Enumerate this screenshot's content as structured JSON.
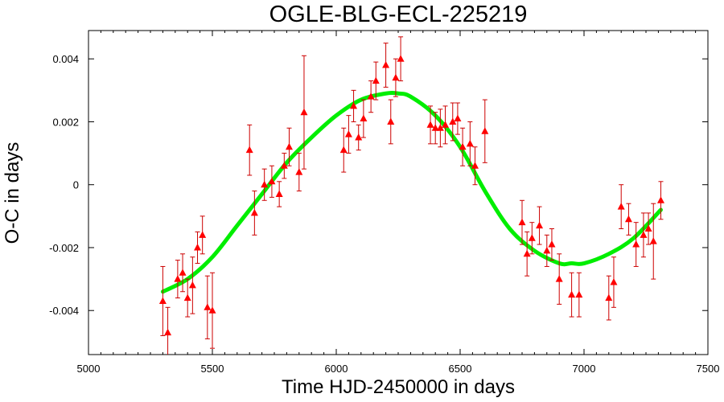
{
  "chart_data": {
    "type": "scatter",
    "title": "OGLE-BLG-ECL-225219",
    "xlabel": "Time HJD-2450000 in days",
    "ylabel": "O-C in days",
    "xlim": [
      5000,
      7500
    ],
    "ylim": [
      -0.0054,
      0.0049
    ],
    "xticks": [
      5000,
      5500,
      6000,
      6500,
      7000,
      7500
    ],
    "xtick_labels": [
      "5000",
      "5500",
      "6000",
      "6500",
      "7000",
      "7500"
    ],
    "yticks": [
      -0.004,
      -0.002,
      0,
      0.002,
      0.004
    ],
    "ytick_labels": [
      "-0.004",
      "-0.002",
      "0",
      "0.002",
      "0.004"
    ],
    "grid": false,
    "colors": {
      "points": "#ff0000",
      "errorbars": "#cc0000",
      "fit": "#00ee00"
    },
    "series": [
      {
        "kind": "points-with-errors",
        "points": [
          {
            "x": 5300,
            "y": -0.0037,
            "err": 0.0011
          },
          {
            "x": 5320,
            "y": -0.0047,
            "err": 0.0008
          },
          {
            "x": 5360,
            "y": -0.003,
            "err": 0.0006
          },
          {
            "x": 5380,
            "y": -0.0028,
            "err": 0.0006
          },
          {
            "x": 5400,
            "y": -0.0036,
            "err": 0.0006
          },
          {
            "x": 5420,
            "y": -0.0032,
            "err": 0.0009
          },
          {
            "x": 5440,
            "y": -0.002,
            "err": 0.0005
          },
          {
            "x": 5460,
            "y": -0.0016,
            "err": 0.0006
          },
          {
            "x": 5480,
            "y": -0.0039,
            "err": 0.001
          },
          {
            "x": 5500,
            "y": -0.004,
            "err": 0.0012
          },
          {
            "x": 5650,
            "y": 0.0011,
            "err": 0.0008
          },
          {
            "x": 5670,
            "y": -0.0009,
            "err": 0.0007
          },
          {
            "x": 5710,
            "y": 0.0,
            "err": 0.0005
          },
          {
            "x": 5740,
            "y": 0.0001,
            "err": 0.0005
          },
          {
            "x": 5770,
            "y": -0.0003,
            "err": 0.0004
          },
          {
            "x": 5790,
            "y": 0.0006,
            "err": 0.0004
          },
          {
            "x": 5810,
            "y": 0.0012,
            "err": 0.0006
          },
          {
            "x": 5850,
            "y": 0.0004,
            "err": 0.0006
          },
          {
            "x": 5870,
            "y": 0.0023,
            "err": 0.0018
          },
          {
            "x": 6030,
            "y": 0.0011,
            "err": 0.0007
          },
          {
            "x": 6050,
            "y": 0.0016,
            "err": 0.0006
          },
          {
            "x": 6070,
            "y": 0.0025,
            "err": 0.0005
          },
          {
            "x": 6090,
            "y": 0.0015,
            "err": 0.0004
          },
          {
            "x": 6110,
            "y": 0.0021,
            "err": 0.0006
          },
          {
            "x": 6140,
            "y": 0.0028,
            "err": 0.0005
          },
          {
            "x": 6160,
            "y": 0.0033,
            "err": 0.0006
          },
          {
            "x": 6200,
            "y": 0.0038,
            "err": 0.0007
          },
          {
            "x": 6220,
            "y": 0.002,
            "err": 0.0007
          },
          {
            "x": 6240,
            "y": 0.0034,
            "err": 0.0006
          },
          {
            "x": 6260,
            "y": 0.004,
            "err": 0.0007
          },
          {
            "x": 6380,
            "y": 0.0019,
            "err": 0.0006
          },
          {
            "x": 6400,
            "y": 0.0018,
            "err": 0.0005
          },
          {
            "x": 6420,
            "y": 0.0018,
            "err": 0.0006
          },
          {
            "x": 6440,
            "y": 0.0019,
            "err": 0.0006
          },
          {
            "x": 6470,
            "y": 0.002,
            "err": 0.0006
          },
          {
            "x": 6490,
            "y": 0.0021,
            "err": 0.0005
          },
          {
            "x": 6510,
            "y": 0.0012,
            "err": 0.0006
          },
          {
            "x": 6540,
            "y": 0.0013,
            "err": 0.0007
          },
          {
            "x": 6560,
            "y": 0.0006,
            "err": 0.0006
          },
          {
            "x": 6600,
            "y": 0.0017,
            "err": 0.001
          },
          {
            "x": 6750,
            "y": -0.0012,
            "err": 0.0007
          },
          {
            "x": 6770,
            "y": -0.0022,
            "err": 0.0007
          },
          {
            "x": 6790,
            "y": -0.0017,
            "err": 0.0005
          },
          {
            "x": 6820,
            "y": -0.0013,
            "err": 0.0006
          },
          {
            "x": 6850,
            "y": -0.0021,
            "err": 0.0005
          },
          {
            "x": 6870,
            "y": -0.0019,
            "err": 0.0005
          },
          {
            "x": 6900,
            "y": -0.003,
            "err": 0.0008
          },
          {
            "x": 6950,
            "y": -0.0035,
            "err": 0.0007
          },
          {
            "x": 6980,
            "y": -0.0035,
            "err": 0.0007
          },
          {
            "x": 7100,
            "y": -0.0036,
            "err": 0.0007
          },
          {
            "x": 7120,
            "y": -0.0031,
            "err": 0.0008
          },
          {
            "x": 7150,
            "y": -0.0007,
            "err": 0.0007
          },
          {
            "x": 7180,
            "y": -0.0011,
            "err": 0.0005
          },
          {
            "x": 7210,
            "y": -0.0019,
            "err": 0.0007
          },
          {
            "x": 7240,
            "y": -0.0016,
            "err": 0.0007
          },
          {
            "x": 7260,
            "y": -0.0014,
            "err": 0.0005
          },
          {
            "x": 7280,
            "y": -0.0018,
            "err": 0.0012
          },
          {
            "x": 7310,
            "y": -0.0005,
            "err": 0.0006
          }
        ]
      },
      {
        "kind": "fit-curve",
        "points": [
          {
            "x": 5300,
            "y": -0.0034
          },
          {
            "x": 5400,
            "y": -0.003
          },
          {
            "x": 5500,
            "y": -0.0023
          },
          {
            "x": 5600,
            "y": -0.0013
          },
          {
            "x": 5700,
            "y": -0.0003
          },
          {
            "x": 5800,
            "y": 0.0007
          },
          {
            "x": 5900,
            "y": 0.0015
          },
          {
            "x": 6000,
            "y": 0.0022
          },
          {
            "x": 6100,
            "y": 0.0027
          },
          {
            "x": 6200,
            "y": 0.0029
          },
          {
            "x": 6250,
            "y": 0.0029
          },
          {
            "x": 6300,
            "y": 0.0028
          },
          {
            "x": 6400,
            "y": 0.0022
          },
          {
            "x": 6500,
            "y": 0.0012
          },
          {
            "x": 6600,
            "y": -0.0002
          },
          {
            "x": 6700,
            "y": -0.0014
          },
          {
            "x": 6800,
            "y": -0.0021
          },
          {
            "x": 6900,
            "y": -0.0025
          },
          {
            "x": 6950,
            "y": -0.0025
          },
          {
            "x": 7000,
            "y": -0.0025
          },
          {
            "x": 7100,
            "y": -0.0022
          },
          {
            "x": 7200,
            "y": -0.0017
          },
          {
            "x": 7310,
            "y": -0.0008
          }
        ]
      }
    ]
  }
}
